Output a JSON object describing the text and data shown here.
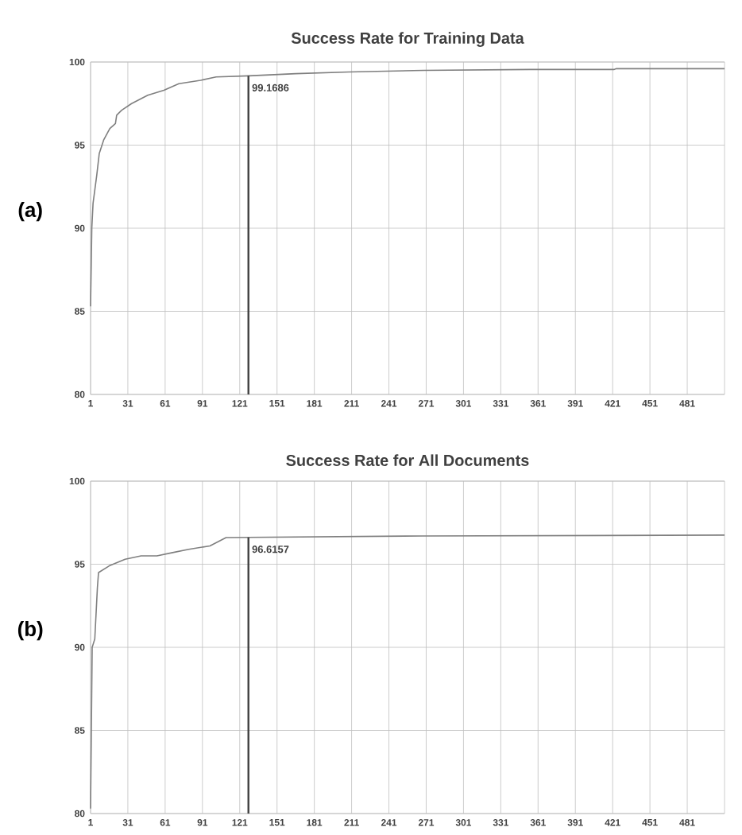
{
  "chart_data": [
    {
      "type": "line",
      "title": "Success Rate for Training Data",
      "xlim": [
        1,
        511
      ],
      "ylim": [
        80,
        100
      ],
      "xticks": [
        1,
        31,
        61,
        91,
        121,
        151,
        181,
        211,
        241,
        271,
        301,
        331,
        361,
        391,
        421,
        451,
        481
      ],
      "yticks": [
        80,
        85,
        90,
        95,
        100
      ],
      "grid": true,
      "marker": "none",
      "line_style": "solid",
      "series": [
        {
          "color": "#7f7f7f",
          "x": [
            1,
            2,
            3,
            6,
            8,
            11.5,
            16.5,
            21,
            22,
            26,
            34,
            47,
            60,
            72,
            89.5,
            102,
            128,
            166,
            209,
            269,
            354,
            422,
            424,
            511
          ],
          "values": [
            85.3,
            90.0,
            91.5,
            93.2,
            94.5,
            95.3,
            96.0,
            96.3,
            96.8,
            97.1,
            97.5,
            98.0,
            98.3,
            98.7,
            98.9,
            99.1,
            99.1686,
            99.3,
            99.4,
            99.5,
            99.55,
            99.55,
            99.6,
            99.6
          ]
        },
        {
          "type": "line",
          "color": "#404040",
          "x": [
            128,
            128
          ],
          "values": [
            80,
            99.1686
          ]
        }
      ],
      "annotations": [
        "(a)",
        {
          "text": "99.1686",
          "x": 128,
          "y": 99.1686
        }
      ]
    },
    {
      "type": "line",
      "title": "Success Rate for All Documents",
      "xlim": [
        1,
        511
      ],
      "ylim": [
        80,
        100
      ],
      "xticks": [
        1,
        31,
        61,
        91,
        121,
        151,
        181,
        211,
        241,
        271,
        301,
        331,
        361,
        391,
        421,
        451,
        481
      ],
      "yticks": [
        80,
        85,
        90,
        95,
        100
      ],
      "grid": true,
      "marker": "none",
      "line_style": "solid",
      "series": [
        {
          "color": "#7f7f7f",
          "x": [
            1,
            2.3,
            4.4,
            6.5,
            7.4,
            16,
            28.8,
            41.6,
            54.4,
            67,
            80,
            97,
            110,
            128,
            268,
            511
          ],
          "values": [
            80.3,
            90.0,
            90.5,
            93.6,
            94.5,
            94.9,
            95.3,
            95.5,
            95.5,
            95.7,
            95.9,
            96.1,
            96.6,
            96.6157,
            96.7,
            96.75
          ]
        },
        {
          "type": "line",
          "color": "#404040",
          "x": [
            128,
            128
          ],
          "values": [
            80,
            96.6157
          ]
        }
      ],
      "annotations": [
        "(b)",
        {
          "text": "96.6157",
          "x": 128,
          "y": 96.6157
        }
      ]
    }
  ]
}
